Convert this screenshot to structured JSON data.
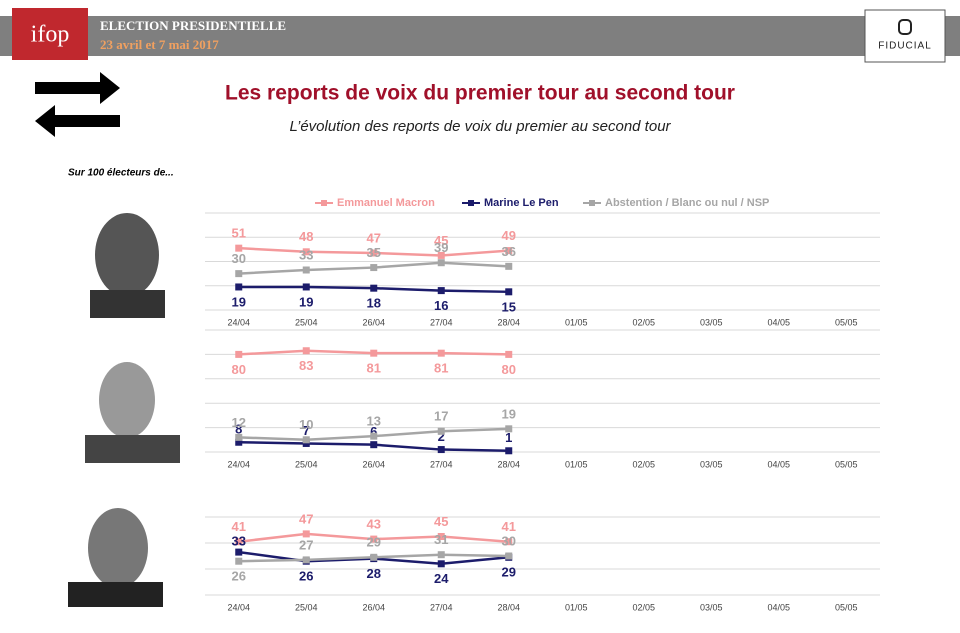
{
  "header": {
    "logo": "ifop",
    "title": "ELECTION PRESIDENTIELLE",
    "subtitle": "23 avril et 7 mai 2017",
    "partner": "FIDUCIAL"
  },
  "title": "Les reports de voix du premier tour au second tour",
  "subtitle": "L’évolution des reports de voix du premier au second tour",
  "note": "Sur 100 électeurs de...",
  "chart_data": [
    {
      "type": "line",
      "categories": [
        "24/04",
        "25/04",
        "26/04",
        "27/04",
        "28/04",
        "01/05",
        "02/05",
        "03/05",
        "04/05",
        "05/05"
      ],
      "series": [
        {
          "name": "Emmanuel Macron",
          "color": "#f4999b",
          "values": [
            51,
            48,
            47,
            45,
            49,
            null,
            null,
            null,
            null,
            null
          ]
        },
        {
          "name": "Marine Le Pen",
          "color": "#1c1c6b",
          "values": [
            19,
            19,
            18,
            16,
            15,
            null,
            null,
            null,
            null,
            null
          ]
        },
        {
          "name": "Abstention / Blanc ou nul / NSP",
          "color": "#a6a6a6",
          "values": [
            30,
            33,
            35,
            39,
            36,
            null,
            null,
            null,
            null,
            null
          ]
        }
      ],
      "ylim": [
        0,
        80
      ],
      "yticks": [
        0,
        20,
        40,
        60,
        80
      ],
      "grid": true
    },
    {
      "type": "line",
      "categories": [
        "24/04",
        "25/04",
        "26/04",
        "27/04",
        "28/04",
        "01/05",
        "02/05",
        "03/05",
        "04/05",
        "05/05"
      ],
      "series": [
        {
          "color": "#f4999b",
          "values": [
            80,
            83,
            81,
            81,
            80,
            null,
            null,
            null,
            null,
            null
          ]
        },
        {
          "color": "#1c1c6b",
          "values": [
            8,
            7,
            6,
            2,
            1,
            null,
            null,
            null,
            null,
            null
          ]
        },
        {
          "color": "#a6a6a6",
          "values": [
            12,
            10,
            13,
            17,
            19,
            null,
            null,
            null,
            null,
            null
          ]
        }
      ],
      "ylim": [
        0,
        100
      ],
      "yticks": [
        0,
        20,
        40,
        60,
        80,
        100
      ],
      "grid": true
    },
    {
      "type": "line",
      "categories": [
        "24/04",
        "25/04",
        "26/04",
        "27/04",
        "28/04",
        "01/05",
        "02/05",
        "03/05",
        "04/05",
        "05/05"
      ],
      "series": [
        {
          "color": "#f4999b",
          "values": [
            41,
            47,
            43,
            45,
            41,
            null,
            null,
            null,
            null,
            null
          ]
        },
        {
          "color": "#1c1c6b",
          "values": [
            33,
            26,
            28,
            24,
            29,
            null,
            null,
            null,
            null,
            null
          ]
        },
        {
          "color": "#a6a6a6",
          "values": [
            26,
            27,
            29,
            31,
            30,
            null,
            null,
            null,
            null,
            null
          ]
        }
      ],
      "ylim": [
        0,
        60
      ],
      "yticks": [
        0,
        20,
        40,
        60
      ],
      "grid": true
    }
  ]
}
